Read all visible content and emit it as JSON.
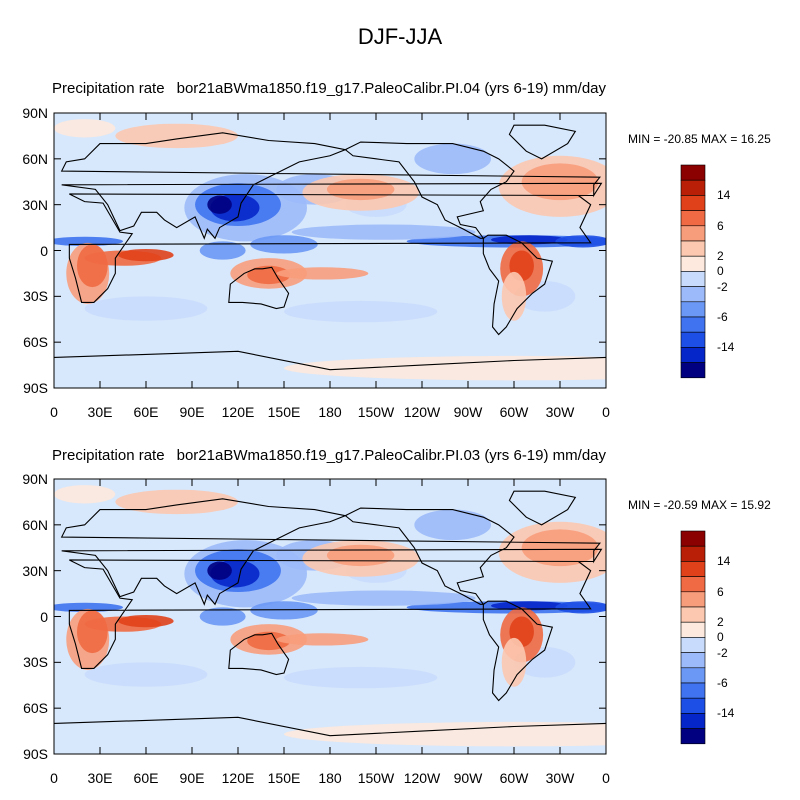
{
  "title": "DJF-JJA",
  "colors": {
    "scale": [
      "#000080",
      "#0526c8",
      "#1d4fe6",
      "#3f73ef",
      "#6b98f5",
      "#9cbaf9",
      "#c9dbfc",
      "#fde9dd",
      "#fcc8b0",
      "#f89d7c",
      "#f06a43",
      "#e0411b",
      "#b81f06",
      "#8b0000"
    ],
    "ocean_neutral": "#d7e8fc",
    "coast": "#000000"
  },
  "colorbar": {
    "labels": [
      "14",
      "6",
      "2",
      "0",
      "-2",
      "-6",
      "-14"
    ]
  },
  "axes": {
    "y_ticks": [
      "90N",
      "60N",
      "30N",
      "0",
      "30S",
      "60S",
      "90S"
    ],
    "x_ticks": [
      "0",
      "30E",
      "60E",
      "90E",
      "120E",
      "150E",
      "180",
      "150W",
      "120W",
      "90W",
      "60W",
      "30W",
      "0"
    ]
  },
  "panels": [
    {
      "left_title": "Precipitation rate",
      "right_title": "bor21aBWma1850.f19_g17.PaleoCalibr.PI.04 (yrs 6-19) mm/day",
      "stats": "MIN = -20.85 MAX =  16.25"
    },
    {
      "left_title": "Precipitation rate",
      "right_title": "bor21aBWma1850.f19_g17.PaleoCalibr.PI.03 (yrs 6-19) mm/day",
      "stats": "MIN = -20.59 MAX =  15.92"
    }
  ]
}
